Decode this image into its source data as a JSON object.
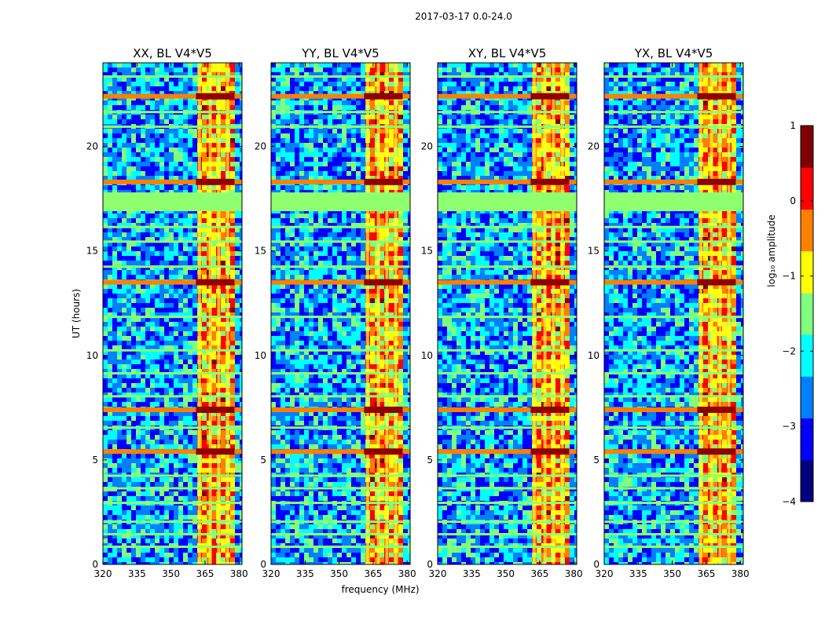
{
  "figure_title": "2017-03-17 0.0-24.0",
  "colorbar": {
    "label": "log₁₀ amplitude",
    "range": [
      -4,
      1
    ],
    "ticks": [
      "1",
      "0",
      "−1",
      "−2",
      "−3",
      "−4"
    ],
    "colormap": "jet",
    "colors": [
      "#00007f",
      "#0000ff",
      "#007fff",
      "#00ffff",
      "#7fff7f",
      "#ffff00",
      "#ff7f00",
      "#ff0000",
      "#7f0000"
    ]
  },
  "chart_data": [
    {
      "type": "heatmap",
      "title": "XX, BL V4*V5",
      "xlabel": "frequency (MHz)",
      "ylabel": "UT (hours)",
      "xlim": [
        320,
        381.3
      ],
      "ylim": [
        0,
        24
      ],
      "xticks": [
        "320",
        "335",
        "350",
        "365",
        "380"
      ],
      "yticks": [
        "0",
        "5",
        "10",
        "15",
        "20"
      ],
      "strong_band_mhz": [
        361,
        378
      ],
      "strong_rows_ut": [
        13.5,
        18.3,
        22.4,
        5.4,
        7.4
      ]
    },
    {
      "type": "heatmap",
      "title": "YY, BL V4*V5",
      "xlabel": "frequency (MHz)",
      "ylabel": "UT (hours)",
      "xlim": [
        320,
        381.3
      ],
      "ylim": [
        0,
        24
      ],
      "xticks": [
        "320",
        "335",
        "350",
        "365",
        "380"
      ],
      "yticks": [
        "0",
        "5",
        "10",
        "15",
        "20"
      ],
      "strong_band_mhz": [
        361,
        378
      ],
      "strong_rows_ut": [
        13.5,
        18.3,
        22.4,
        5.4,
        7.4
      ]
    },
    {
      "type": "heatmap",
      "title": "XY, BL V4*V5",
      "xlabel": "frequency (MHz)",
      "ylabel": "UT (hours)",
      "xlim": [
        320,
        381.3
      ],
      "ylim": [
        0,
        24
      ],
      "xticks": [
        "320",
        "335",
        "350",
        "365",
        "380"
      ],
      "yticks": [
        "0",
        "5",
        "10",
        "15",
        "20"
      ],
      "strong_band_mhz": [
        361,
        378
      ],
      "strong_rows_ut": [
        13.5,
        18.3,
        22.4,
        5.4,
        7.4
      ]
    },
    {
      "type": "heatmap",
      "title": "YX, BL V4*V5",
      "xlabel": "frequency (MHz)",
      "ylabel": "UT (hours)",
      "xlim": [
        320,
        381.3
      ],
      "ylim": [
        0,
        24
      ],
      "xticks": [
        "320",
        "335",
        "350",
        "365",
        "380"
      ],
      "yticks": [
        "0",
        "5",
        "10",
        "15",
        "20"
      ],
      "strong_band_mhz": [
        361,
        378
      ],
      "strong_rows_ut": [
        13.5,
        18.3,
        22.4,
        5.4,
        7.4
      ]
    }
  ]
}
